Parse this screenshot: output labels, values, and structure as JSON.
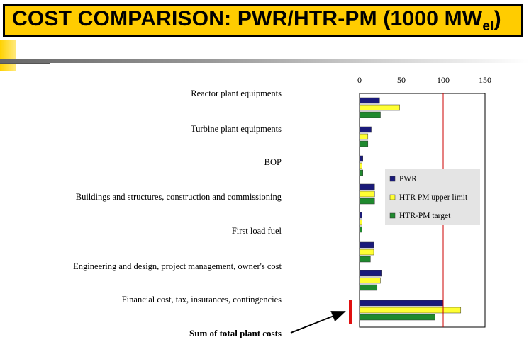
{
  "title": {
    "main": "COST COMPARISON: PWR/HTR-PM (1000 MW",
    "sub": "el",
    "close": ")"
  },
  "colors": {
    "title_bg": "#ffcc00",
    "pwr": "#1a1a7a",
    "htr_upper": "#ffff33",
    "htr_target": "#1f8a2e",
    "reference_line": "#cc0000",
    "marker": "#e01010"
  },
  "chart_data": {
    "type": "bar",
    "orientation": "horizontal",
    "categories": [
      "Reactor plant equipments",
      "Turbine plant equipments",
      "BOP",
      "Buildings and structures, construction and commissioning",
      "First load fuel",
      "Engineering and design, project management, owner's cost",
      "Financial cost, tax, insurances, contingencies",
      "Sum of total plant costs"
    ],
    "series": [
      {
        "name": "PWR",
        "values": [
          24,
          14,
          4,
          18,
          3,
          17,
          26,
          100
        ]
      },
      {
        "name": "HTR PM upper limit",
        "values": [
          48,
          10,
          3,
          18,
          3,
          17,
          25,
          121
        ]
      },
      {
        "name": "HTR-PM target",
        "values": [
          25,
          10,
          4,
          18,
          3,
          13,
          21,
          90
        ]
      }
    ],
    "xlim": [
      0,
      150
    ],
    "xticks": [
      "0",
      "50",
      "100",
      "150"
    ],
    "reference_line_x": 100,
    "legend_placement": "inside-right",
    "grid": false
  },
  "annotation": {
    "label": "Sum of total plant costs"
  }
}
